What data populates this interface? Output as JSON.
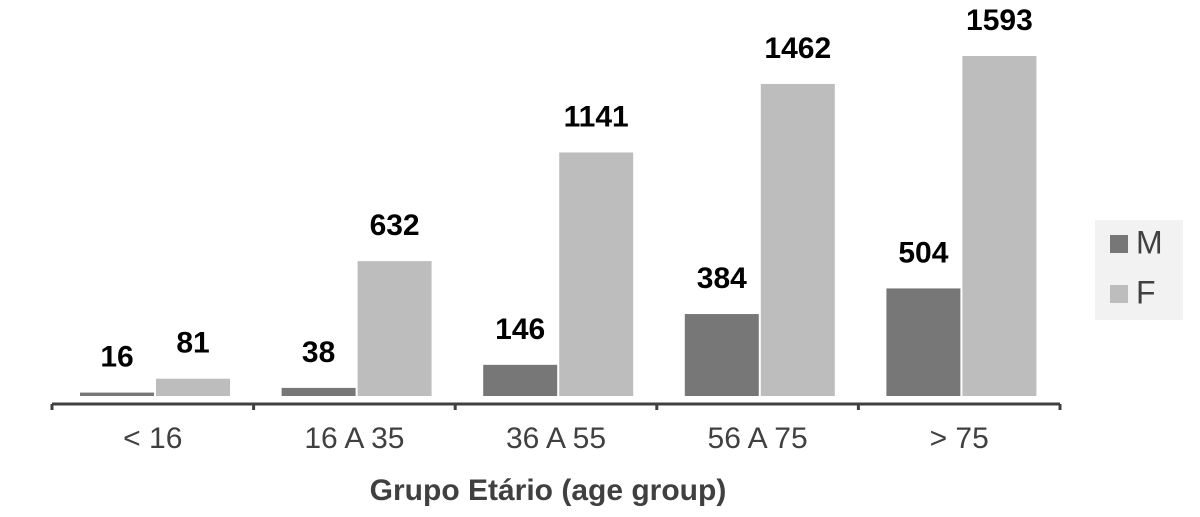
{
  "chart_data": {
    "type": "bar",
    "x_label": "Grupo Etário (age group)",
    "categories": [
      "< 16",
      "16 A 35",
      "36 A 55",
      "56 A 75",
      "> 75"
    ],
    "series": [
      {
        "name": "M",
        "color": "#777777",
        "values": [
          16,
          38,
          146,
          384,
          504
        ]
      },
      {
        "name": "F",
        "color": "#bdbdbd",
        "values": [
          81,
          632,
          1141,
          1462,
          1593
        ]
      }
    ],
    "legend": "right"
  }
}
